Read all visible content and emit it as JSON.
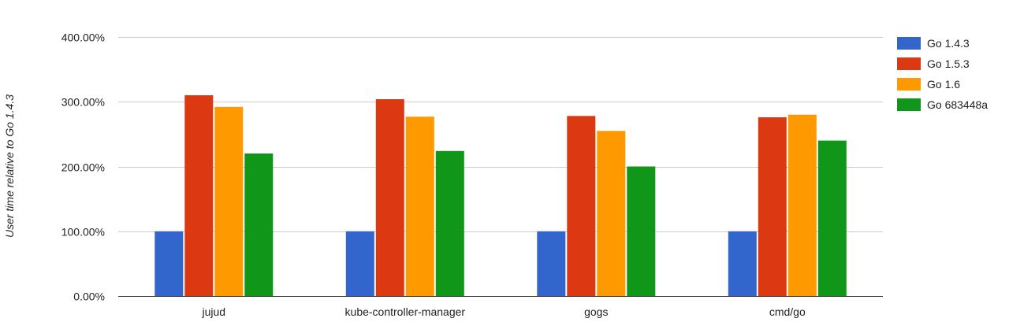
{
  "chart_data": {
    "type": "bar",
    "title": "",
    "xlabel": "",
    "ylabel": "User time relative to Go 1.4.3",
    "ylim": [
      0,
      400
    ],
    "yticks": [
      0,
      100,
      200,
      300,
      400
    ],
    "ytick_labels": [
      "0.00%",
      "100.00%",
      "200.00%",
      "300.00%",
      "400.00%"
    ],
    "grid": true,
    "legend_position": "right",
    "categories": [
      "jujud",
      "kube-controller-manager",
      "gogs",
      "cmd/go"
    ],
    "series": [
      {
        "name": "Go 1.4.3",
        "color": "#3366cc",
        "values": [
          100,
          100,
          100,
          100
        ]
      },
      {
        "name": "Go 1.5.3",
        "color": "#dc3912",
        "values": [
          310,
          304,
          278,
          276
        ]
      },
      {
        "name": "Go 1.6",
        "color": "#ff9900",
        "values": [
          292,
          277,
          255,
          280
        ]
      },
      {
        "name": "Go 683448a",
        "color": "#109618",
        "values": [
          220,
          224,
          200,
          240
        ]
      }
    ]
  }
}
